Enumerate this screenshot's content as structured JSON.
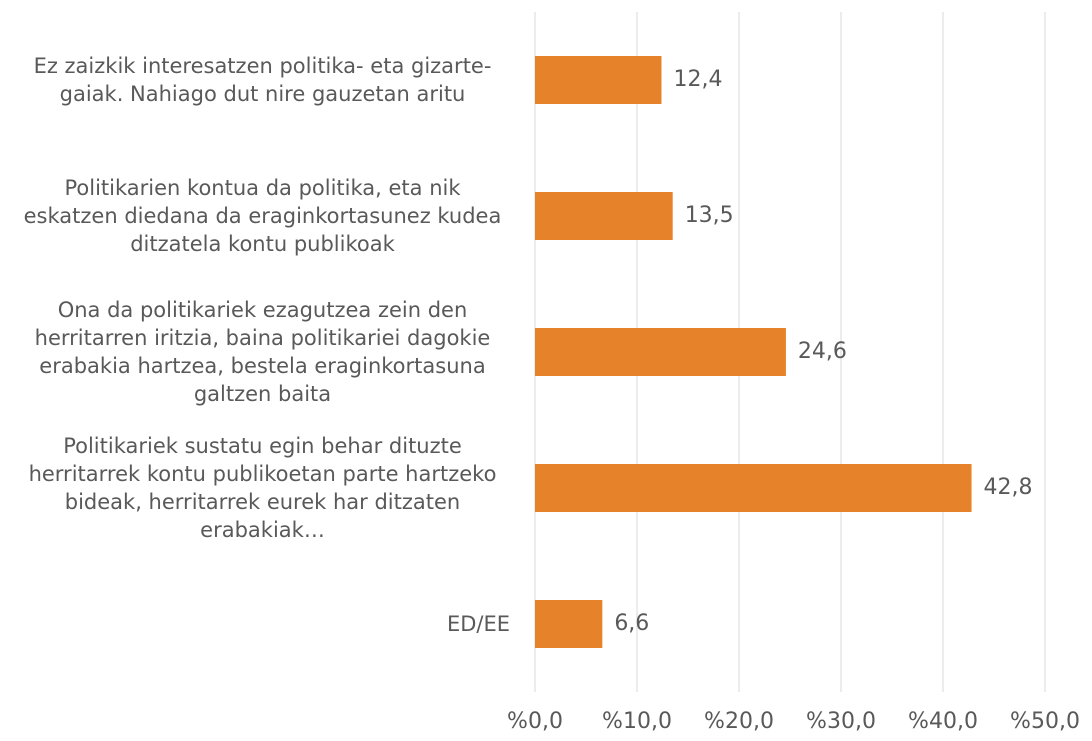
{
  "chart_data": {
    "type": "bar",
    "orientation": "horizontal",
    "categories": [
      "Ez zaizkik interesatzen politika- eta gizarte-gaiak. Nahiago dut nire gauzetan aritu",
      "Politikarien kontua da politika, eta nik eskatzen diedana da eraginkortasunez kudea ditzatela kontu publikoak",
      "Ona da politikariek ezagutzea zein den herritarren iritzia, baina politikariei dagokie erabakia hartzea, bestela eraginkortasuna galtzen baita",
      "Politikariek sustatu egin behar dituzte herritarrek kontu publikoetan parte hartzeko bideak, herritarrek eurek har ditzaten erabakiak…",
      "ED/EE"
    ],
    "values": [
      12.4,
      13.5,
      24.6,
      42.8,
      6.6
    ],
    "value_labels": [
      "12,4",
      "13,5",
      "24,6",
      "42,8",
      "6,6"
    ],
    "color": "#e6832a",
    "xlim": [
      0,
      50
    ],
    "xticks": [
      {
        "value": 0,
        "label": "%0,0"
      },
      {
        "value": 10,
        "label": "%10,0"
      },
      {
        "value": 20,
        "label": "%20,0"
      },
      {
        "value": 30,
        "label": "%30,0"
      },
      {
        "value": 40,
        "label": "%40,0"
      },
      {
        "value": 50,
        "label": "%50,0"
      }
    ],
    "grid": true
  }
}
